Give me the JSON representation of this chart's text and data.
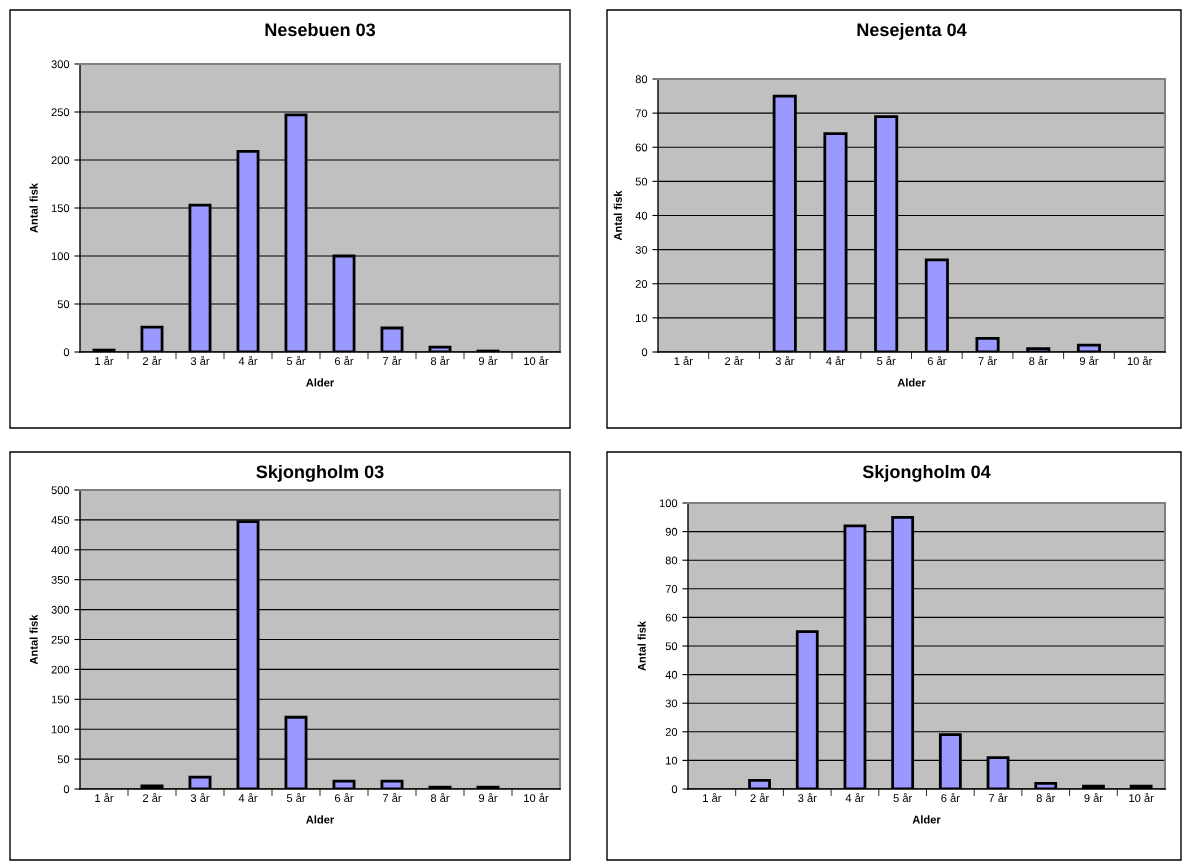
{
  "chart_data": [
    {
      "type": "bar",
      "title": "Nesebuen 03",
      "xlabel": "Alder",
      "ylabel": "Antal fisk",
      "categories": [
        "1 år",
        "2 år",
        "3 år",
        "4 år",
        "5 år",
        "6 år",
        "7 år",
        "8 år",
        "9 år",
        "10 år"
      ],
      "values": [
        2,
        26,
        153,
        209,
        247,
        100,
        25,
        5,
        1,
        null
      ],
      "color": "#9999ff",
      "ylim": [
        0,
        300
      ],
      "yticks": [
        0,
        50,
        100,
        150,
        200,
        250,
        300
      ],
      "grid": "y",
      "legend": false
    },
    {
      "type": "bar",
      "title": "Nesejenta 04",
      "xlabel": "Alder",
      "ylabel": "Antal fisk",
      "categories": [
        "1 år",
        "2 år",
        "3 år",
        "4 år",
        "5 år",
        "6 år",
        "7 år",
        "8 år",
        "9 år",
        "10 år"
      ],
      "values": [
        null,
        null,
        75,
        64,
        69,
        27,
        4,
        1,
        2,
        null
      ],
      "color": "#9999ff",
      "ylim": [
        0,
        80
      ],
      "yticks": [
        0,
        10,
        20,
        30,
        40,
        50,
        60,
        70,
        80
      ],
      "grid": "y",
      "legend": false
    },
    {
      "type": "bar",
      "title": "Skjongholm 03",
      "xlabel": "Alder",
      "ylabel": "Antal fisk",
      "categories": [
        "1 år",
        "2 år",
        "3 år",
        "4 år",
        "5 år",
        "6 år",
        "7 år",
        "8 år",
        "9 år",
        "10 år"
      ],
      "values": [
        null,
        5,
        20,
        447,
        120,
        13,
        13,
        3,
        3,
        null
      ],
      "color": "#9999ff",
      "ylim": [
        0,
        500
      ],
      "yticks": [
        0,
        50,
        100,
        150,
        200,
        250,
        300,
        350,
        400,
        450,
        500
      ],
      "grid": "y",
      "legend": false
    },
    {
      "type": "bar",
      "title": "Skjongholm 04",
      "xlabel": "Alder",
      "ylabel": "Antal fisk",
      "categories": [
        "1 år",
        "2 år",
        "3 år",
        "4 år",
        "5 år",
        "6 år",
        "7 år",
        "8 år",
        "9 år",
        "10 år"
      ],
      "values": [
        null,
        3,
        55,
        92,
        95,
        19,
        11,
        2,
        1,
        1
      ],
      "color": "#9999ff",
      "ylim": [
        0,
        100
      ],
      "yticks": [
        0,
        10,
        20,
        30,
        40,
        50,
        60,
        70,
        80,
        90,
        100
      ],
      "grid": "y",
      "legend": false
    }
  ]
}
